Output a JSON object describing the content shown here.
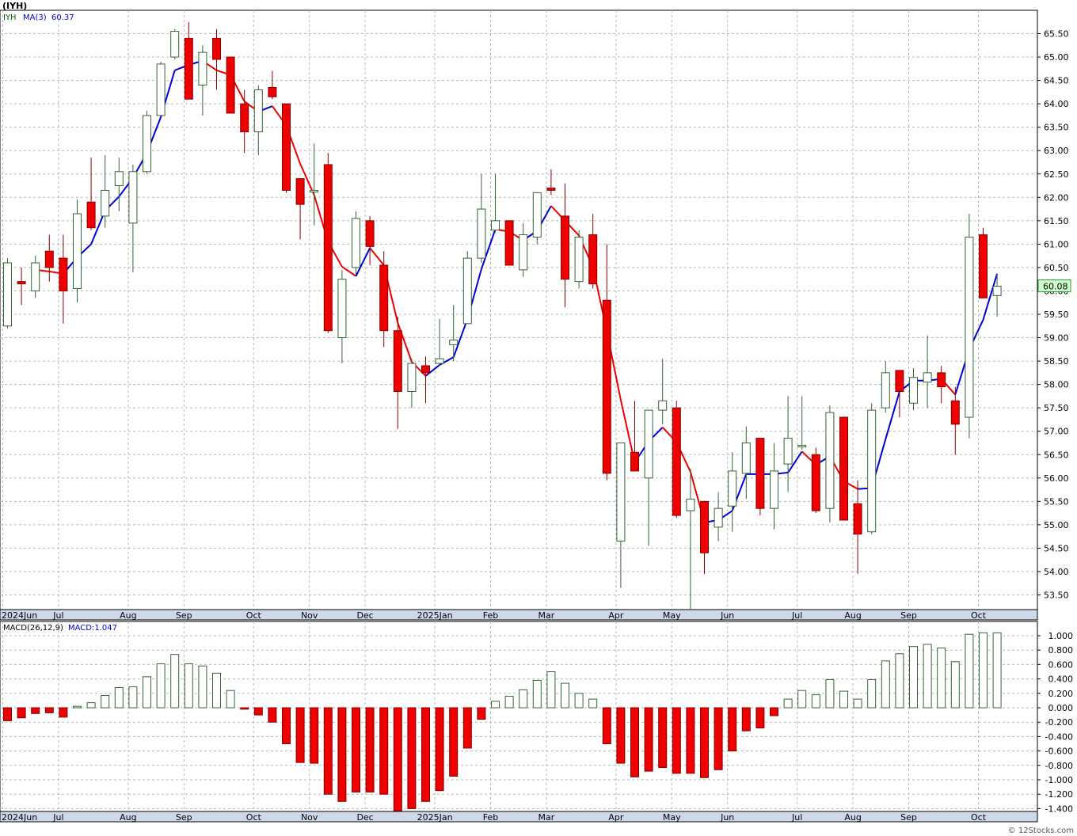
{
  "symbol_title": "(IYH)",
  "watermark": "© 12Stocks.com",
  "chart_data": [
    {
      "type": "candlestick",
      "legend": {
        "symbol": "IYH",
        "ma_label": "MA(3)",
        "ma_value": "60.37"
      },
      "last_price_label": "60.08",
      "ylim": [
        53.2,
        65.9
      ],
      "yticks": [
        "65.50",
        "65.00",
        "64.50",
        "64.00",
        "63.50",
        "63.00",
        "62.50",
        "62.00",
        "61.50",
        "61.00",
        "60.50",
        "60.00",
        "59.50",
        "59.00",
        "58.50",
        "58.00",
        "57.50",
        "57.00",
        "56.50",
        "56.00",
        "55.50",
        "55.00",
        "54.50",
        "54.00",
        "53.50"
      ],
      "month_labels": [
        "2024Jun",
        "Jul",
        "Aug",
        "Sep",
        "Oct",
        "Nov",
        "Dec",
        "2025Jan",
        "Feb",
        "Mar",
        "Apr",
        "May",
        "Jun",
        "Jul",
        "Aug",
        "Sep",
        "Oct"
      ],
      "month_label_weeks": [
        0,
        4,
        9,
        13,
        18,
        22,
        26,
        31,
        35,
        39,
        44,
        48,
        52,
        57,
        61,
        65,
        70
      ],
      "candles": [
        {
          "o": 59.25,
          "h": 60.7,
          "l": 59.2,
          "c": 60.6
        },
        {
          "o": 60.2,
          "h": 60.5,
          "l": 59.7,
          "c": 60.15
        },
        {
          "o": 60.0,
          "h": 60.75,
          "l": 59.85,
          "c": 60.6
        },
        {
          "o": 60.85,
          "h": 61.2,
          "l": 60.2,
          "c": 60.5
        },
        {
          "o": 60.7,
          "h": 61.2,
          "l": 59.3,
          "c": 60.0
        },
        {
          "o": 60.05,
          "h": 61.95,
          "l": 59.75,
          "c": 61.65
        },
        {
          "o": 61.9,
          "h": 62.85,
          "l": 61.3,
          "c": 61.35
        },
        {
          "o": 61.6,
          "h": 62.9,
          "l": 61.35,
          "c": 62.15
        },
        {
          "o": 62.25,
          "h": 62.85,
          "l": 61.7,
          "c": 62.55
        },
        {
          "o": 61.45,
          "h": 62.7,
          "l": 60.4,
          "c": 62.55
        },
        {
          "o": 62.55,
          "h": 63.85,
          "l": 62.5,
          "c": 63.75
        },
        {
          "o": 63.75,
          "h": 64.9,
          "l": 63.75,
          "c": 64.85
        },
        {
          "o": 65.0,
          "h": 65.6,
          "l": 64.95,
          "c": 65.55
        },
        {
          "o": 65.4,
          "h": 65.75,
          "l": 64.1,
          "c": 64.1
        },
        {
          "o": 64.4,
          "h": 65.25,
          "l": 63.75,
          "c": 65.1
        },
        {
          "o": 65.4,
          "h": 65.6,
          "l": 64.3,
          "c": 64.95
        },
        {
          "o": 65.0,
          "h": 65.0,
          "l": 63.8,
          "c": 63.8
        },
        {
          "o": 64.0,
          "h": 64.3,
          "l": 62.95,
          "c": 63.4
        },
        {
          "o": 63.4,
          "h": 64.4,
          "l": 62.9,
          "c": 64.3
        },
        {
          "o": 64.35,
          "h": 64.7,
          "l": 64.1,
          "c": 64.15
        },
        {
          "o": 64.0,
          "h": 64.0,
          "l": 62.1,
          "c": 62.15
        },
        {
          "o": 62.4,
          "h": 62.4,
          "l": 61.1,
          "c": 61.85
        },
        {
          "o": 62.15,
          "h": 63.15,
          "l": 61.4,
          "c": 62.15
        },
        {
          "o": 62.7,
          "h": 62.95,
          "l": 59.1,
          "c": 59.15
        },
        {
          "o": 59.0,
          "h": 60.45,
          "l": 58.45,
          "c": 60.25
        },
        {
          "o": 60.5,
          "h": 61.7,
          "l": 60.35,
          "c": 61.55
        },
        {
          "o": 61.5,
          "h": 61.6,
          "l": 60.55,
          "c": 60.95
        },
        {
          "o": 60.55,
          "h": 60.85,
          "l": 58.8,
          "c": 59.15
        },
        {
          "o": 59.15,
          "h": 59.45,
          "l": 57.05,
          "c": 57.85
        },
        {
          "o": 57.85,
          "h": 58.55,
          "l": 57.5,
          "c": 58.45
        },
        {
          "o": 58.4,
          "h": 58.6,
          "l": 57.6,
          "c": 58.25
        },
        {
          "o": 58.45,
          "h": 59.4,
          "l": 58.4,
          "c": 58.55
        },
        {
          "o": 58.85,
          "h": 59.7,
          "l": 58.5,
          "c": 58.95
        },
        {
          "o": 59.3,
          "h": 60.85,
          "l": 59.3,
          "c": 60.7
        },
        {
          "o": 60.7,
          "h": 62.5,
          "l": 60.6,
          "c": 61.75
        },
        {
          "o": 61.3,
          "h": 62.5,
          "l": 61.25,
          "c": 61.5
        },
        {
          "o": 61.5,
          "h": 61.5,
          "l": 60.55,
          "c": 60.55
        },
        {
          "o": 60.45,
          "h": 61.45,
          "l": 60.3,
          "c": 61.2
        },
        {
          "o": 61.15,
          "h": 62.0,
          "l": 61.0,
          "c": 62.1
        },
        {
          "o": 62.2,
          "h": 62.6,
          "l": 62.05,
          "c": 62.15
        },
        {
          "o": 61.6,
          "h": 62.3,
          "l": 59.65,
          "c": 60.25
        },
        {
          "o": 60.2,
          "h": 61.3,
          "l": 60.05,
          "c": 61.15
        },
        {
          "o": 61.2,
          "h": 61.65,
          "l": 60.05,
          "c": 60.15
        },
        {
          "o": 59.8,
          "h": 61.0,
          "l": 55.95,
          "c": 56.1
        },
        {
          "o": 54.65,
          "h": 56.75,
          "l": 53.65,
          "c": 56.75
        },
        {
          "o": 56.55,
          "h": 57.65,
          "l": 56.15,
          "c": 56.15
        },
        {
          "o": 56.0,
          "h": 57.45,
          "l": 54.55,
          "c": 57.45
        },
        {
          "o": 57.45,
          "h": 58.55,
          "l": 57.15,
          "c": 57.65
        },
        {
          "o": 57.5,
          "h": 57.65,
          "l": 55.15,
          "c": 55.2
        },
        {
          "o": 55.3,
          "h": 56.2,
          "l": 53.2,
          "c": 55.55
        },
        {
          "o": 55.5,
          "h": 55.5,
          "l": 53.95,
          "c": 54.4
        },
        {
          "o": 54.95,
          "h": 55.7,
          "l": 54.65,
          "c": 55.35
        },
        {
          "o": 55.4,
          "h": 56.55,
          "l": 54.85,
          "c": 56.15
        },
        {
          "o": 56.1,
          "h": 57.1,
          "l": 55.55,
          "c": 56.75
        },
        {
          "o": 56.85,
          "h": 56.85,
          "l": 55.2,
          "c": 55.35
        },
        {
          "o": 55.35,
          "h": 56.75,
          "l": 54.9,
          "c": 56.15
        },
        {
          "o": 56.3,
          "h": 57.75,
          "l": 55.7,
          "c": 56.85
        },
        {
          "o": 56.7,
          "h": 57.75,
          "l": 56.6,
          "c": 56.7
        },
        {
          "o": 56.5,
          "h": 56.65,
          "l": 55.25,
          "c": 55.3
        },
        {
          "o": 55.35,
          "h": 57.55,
          "l": 55.05,
          "c": 57.4
        },
        {
          "o": 57.3,
          "h": 57.3,
          "l": 55.1,
          "c": 55.1
        },
        {
          "o": 55.45,
          "h": 55.95,
          "l": 53.95,
          "c": 54.8
        },
        {
          "o": 54.85,
          "h": 57.6,
          "l": 54.8,
          "c": 57.45
        },
        {
          "o": 57.5,
          "h": 58.5,
          "l": 57.4,
          "c": 58.25
        },
        {
          "o": 58.3,
          "h": 58.3,
          "l": 57.3,
          "c": 57.85
        },
        {
          "o": 57.6,
          "h": 58.35,
          "l": 57.45,
          "c": 58.15
        },
        {
          "o": 58.05,
          "h": 59.05,
          "l": 57.5,
          "c": 58.25
        },
        {
          "o": 58.25,
          "h": 58.4,
          "l": 57.6,
          "c": 57.95
        },
        {
          "o": 57.65,
          "h": 57.95,
          "l": 56.5,
          "c": 57.15
        },
        {
          "o": 57.3,
          "h": 61.65,
          "l": 56.85,
          "c": 61.15
        },
        {
          "o": 61.2,
          "h": 61.35,
          "l": 59.85,
          "c": 59.85
        },
        {
          "o": 59.9,
          "h": 60.35,
          "l": 59.45,
          "c": 60.1
        }
      ]
    },
    {
      "type": "bar",
      "legend": {
        "indicator": "MACD(26,12,9)",
        "value_label": "MACD:1.047"
      },
      "ylim": [
        -1.45,
        1.12
      ],
      "yticks": [
        "1.000",
        "0.800",
        "0.600",
        "0.400",
        "0.200",
        "0.000",
        "-0.200",
        "-0.400",
        "-0.600",
        "-0.800",
        "-1.000",
        "-1.200",
        "-1.400"
      ],
      "values": [
        -0.18,
        -0.14,
        -0.08,
        -0.07,
        -0.13,
        0.02,
        0.07,
        0.17,
        0.28,
        0.29,
        0.43,
        0.61,
        0.74,
        0.61,
        0.58,
        0.48,
        0.24,
        -0.02,
        -0.1,
        -0.2,
        -0.5,
        -0.76,
        -0.77,
        -1.2,
        -1.3,
        -1.17,
        -1.17,
        -1.2,
        -1.43,
        -1.4,
        -1.3,
        -1.15,
        -0.95,
        -0.56,
        -0.16,
        0.09,
        0.16,
        0.25,
        0.38,
        0.5,
        0.34,
        0.2,
        0.12,
        -0.5,
        -0.77,
        -0.96,
        -0.88,
        -0.83,
        -0.91,
        -0.91,
        -0.97,
        -0.86,
        -0.6,
        -0.32,
        -0.28,
        -0.11,
        0.12,
        0.24,
        0.18,
        0.39,
        0.23,
        0.12,
        0.39,
        0.65,
        0.75,
        0.85,
        0.88,
        0.83,
        0.64,
        1.02,
        1.04,
        1.04
      ]
    }
  ]
}
